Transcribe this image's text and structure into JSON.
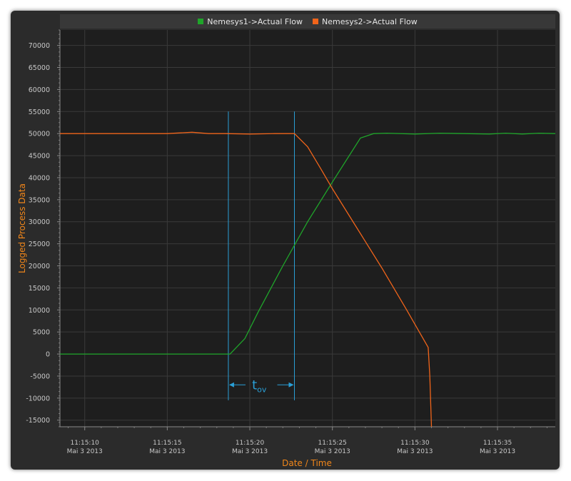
{
  "chart_data": {
    "type": "line",
    "xlabel": "Date / Time",
    "ylabel": "Logged Process Data",
    "x_unit": "seconds",
    "xlim": [
      8.5,
      38.5
    ],
    "ylim": [
      -16500,
      73500
    ],
    "yticks": [
      -15000,
      -10000,
      -5000,
      0,
      5000,
      10000,
      15000,
      20000,
      25000,
      30000,
      35000,
      40000,
      45000,
      50000,
      55000,
      60000,
      65000,
      70000
    ],
    "xticks": [
      {
        "t": 10,
        "time": "11:15:10",
        "date": "Mai 3 2013"
      },
      {
        "t": 15,
        "time": "11:15:15",
        "date": "Mai 3 2013"
      },
      {
        "t": 20,
        "time": "11:15:20",
        "date": "Mai 3 2013"
      },
      {
        "t": 25,
        "time": "11:15:25",
        "date": "Mai 3 2013"
      },
      {
        "t": 30,
        "time": "11:15:30",
        "date": "Mai 3 2013"
      },
      {
        "t": 35,
        "time": "11:15:35",
        "date": "Mai 3 2013"
      }
    ],
    "series": [
      {
        "name": "Nemesys1->Actual Flow",
        "color": "#1fa52a",
        "points": [
          [
            8.5,
            0
          ],
          [
            18.5,
            0
          ],
          [
            18.8,
            0
          ],
          [
            19.7,
            3500
          ],
          [
            20.5,
            9500
          ],
          [
            22.0,
            20000
          ],
          [
            23.5,
            30000
          ],
          [
            25.0,
            39000
          ],
          [
            26.7,
            49000
          ],
          [
            27.5,
            50000
          ],
          [
            28.3,
            50100
          ],
          [
            30.0,
            49900
          ],
          [
            31.5,
            50100
          ],
          [
            33.0,
            50000
          ],
          [
            34.5,
            49900
          ],
          [
            35.5,
            50100
          ],
          [
            36.5,
            49900
          ],
          [
            37.5,
            50100
          ],
          [
            38.5,
            50000
          ]
        ]
      },
      {
        "name": "Nemesys2->Actual Flow",
        "color": "#f0641a",
        "points": [
          [
            8.5,
            50000
          ],
          [
            15.0,
            50000
          ],
          [
            16.5,
            50300
          ],
          [
            17.5,
            50000
          ],
          [
            18.5,
            50000
          ],
          [
            20.0,
            49900
          ],
          [
            21.5,
            50000
          ],
          [
            22.7,
            50000
          ],
          [
            23.5,
            47000
          ],
          [
            24.3,
            42000
          ],
          [
            25.0,
            37500
          ],
          [
            26.5,
            28500
          ],
          [
            28.0,
            19500
          ],
          [
            29.5,
            10000
          ],
          [
            30.8,
            1500
          ],
          [
            30.9,
            -5000
          ],
          [
            31.0,
            -16500
          ]
        ]
      }
    ],
    "annotation": {
      "label_main": "t",
      "label_sub": "ov",
      "x_start": 18.7,
      "x_end": 22.7,
      "y_top": 55000,
      "y_bottom": -10500,
      "arrow_y": -7000,
      "color": "#2a9fd6"
    }
  },
  "colors": {
    "background": "#1e1e1e",
    "grid": "#3a3a3a",
    "tick_text": "#c8c8c8",
    "axis_title": "#f0861a"
  }
}
